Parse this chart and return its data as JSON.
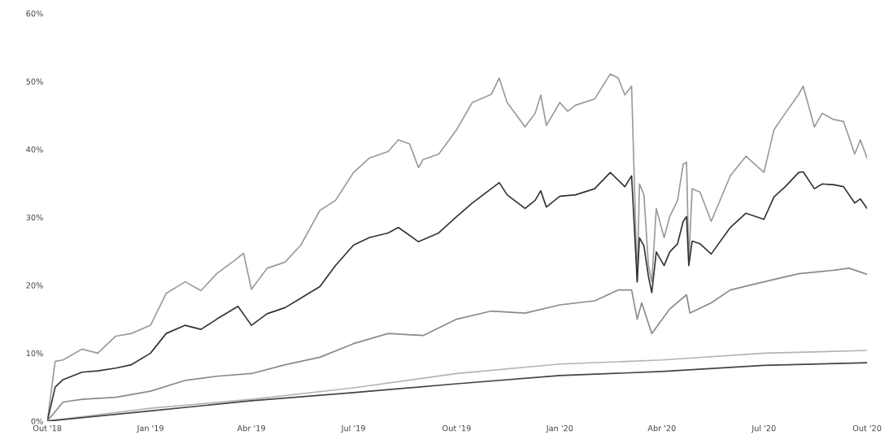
{
  "chart_data": {
    "type": "line",
    "xlim": [
      "2018-10-01",
      "2020-10-01"
    ],
    "xticks": [
      {
        "value": "2018-10-01",
        "label": "Out '18"
      },
      {
        "value": "2019-01-01",
        "label": "Jan '19"
      },
      {
        "value": "2019-04-01",
        "label": "Abr '19"
      },
      {
        "value": "2019-07-01",
        "label": "Jul '19"
      },
      {
        "value": "2019-10-01",
        "label": "Out '19"
      },
      {
        "value": "2020-01-01",
        "label": "Jan '20"
      },
      {
        "value": "2020-04-01",
        "label": "Abr '20"
      },
      {
        "value": "2020-07-01",
        "label": "Jul '20"
      },
      {
        "value": "2020-10-01",
        "label": "Out '20"
      }
    ],
    "ylim": [
      0,
      60
    ],
    "yticks": [
      {
        "value": 0,
        "label": "0%"
      },
      {
        "value": 10,
        "label": "10%"
      },
      {
        "value": 20,
        "label": "20%"
      },
      {
        "value": 30,
        "label": "30%"
      },
      {
        "value": 40,
        "label": "40%"
      },
      {
        "value": 50,
        "label": "50%"
      },
      {
        "value": 60,
        "label": "60%"
      }
    ],
    "grid": false,
    "legend": false,
    "series": [
      {
        "color": "#9a9a9a",
        "x": [
          "2018-10-01",
          "2018-10-08",
          "2018-10-15",
          "2018-11-01",
          "2018-11-15",
          "2018-12-01",
          "2018-12-15",
          "2019-01-01",
          "2019-01-15",
          "2019-02-01",
          "2019-02-15",
          "2019-03-01",
          "2019-03-15",
          "2019-03-25",
          "2019-04-01",
          "2019-04-15",
          "2019-05-01",
          "2019-05-15",
          "2019-06-01",
          "2019-06-15",
          "2019-07-01",
          "2019-07-15",
          "2019-08-01",
          "2019-08-10",
          "2019-08-20",
          "2019-08-28",
          "2019-09-01",
          "2019-09-15",
          "2019-10-01",
          "2019-10-15",
          "2019-11-01",
          "2019-11-08",
          "2019-11-15",
          "2019-12-01",
          "2019-12-10",
          "2019-12-15",
          "2019-12-20",
          "2020-01-01",
          "2020-01-08",
          "2020-01-15",
          "2020-02-01",
          "2020-02-15",
          "2020-02-22",
          "2020-02-28",
          "2020-03-05",
          "2020-03-10",
          "2020-03-12",
          "2020-03-16",
          "2020-03-20",
          "2020-03-23",
          "2020-03-27",
          "2020-04-03",
          "2020-04-08",
          "2020-04-15",
          "2020-04-20",
          "2020-04-23",
          "2020-04-25",
          "2020-04-28",
          "2020-05-05",
          "2020-05-15",
          "2020-06-01",
          "2020-06-15",
          "2020-07-01",
          "2020-07-10",
          "2020-07-20",
          "2020-08-01",
          "2020-08-05",
          "2020-08-15",
          "2020-08-22",
          "2020-09-01",
          "2020-09-10",
          "2020-09-20",
          "2020-09-25",
          "2020-10-01"
        ],
        "values": [
          0,
          8.8,
          9,
          10.6,
          10,
          12.5,
          12.9,
          14.1,
          18.8,
          20.5,
          19.2,
          21.7,
          23.4,
          24.7,
          19.4,
          22.5,
          23.4,
          25.9,
          31,
          32.5,
          36.6,
          38.7,
          39.7,
          41.4,
          40.8,
          37.3,
          38.5,
          39.3,
          42.9,
          46.9,
          48.1,
          50.5,
          46.9,
          43.3,
          45.3,
          48,
          43.5,
          46.9,
          45.6,
          46.5,
          47.4,
          51.1,
          50.5,
          48,
          49.3,
          20.5,
          34.9,
          33.3,
          22.9,
          20.5,
          31.3,
          27,
          30.1,
          32.5,
          37.8,
          38.1,
          23.4,
          34.2,
          33.7,
          29.4,
          36.1,
          39,
          36.6,
          42.9,
          45.3,
          48.1,
          49.3,
          43.3,
          45.3,
          44.4,
          44.1,
          39.3,
          41.4,
          38.7
        ]
      },
      {
        "color": "#333333",
        "x": [
          "2018-10-01",
          "2018-10-08",
          "2018-10-15",
          "2018-11-01",
          "2018-11-15",
          "2018-12-01",
          "2018-12-15",
          "2019-01-01",
          "2019-01-15",
          "2019-02-01",
          "2019-02-15",
          "2019-03-01",
          "2019-03-20",
          "2019-04-01",
          "2019-04-15",
          "2019-05-01",
          "2019-05-15",
          "2019-06-01",
          "2019-06-15",
          "2019-07-01",
          "2019-07-15",
          "2019-08-01",
          "2019-08-10",
          "2019-08-28",
          "2019-09-15",
          "2019-10-01",
          "2019-10-15",
          "2019-11-08",
          "2019-11-15",
          "2019-12-01",
          "2019-12-10",
          "2019-12-15",
          "2019-12-20",
          "2020-01-01",
          "2020-01-15",
          "2020-02-01",
          "2020-02-15",
          "2020-02-28",
          "2020-03-05",
          "2020-03-10",
          "2020-03-12",
          "2020-03-16",
          "2020-03-20",
          "2020-03-23",
          "2020-03-27",
          "2020-04-03",
          "2020-04-08",
          "2020-04-15",
          "2020-04-20",
          "2020-04-23",
          "2020-04-25",
          "2020-04-28",
          "2020-05-05",
          "2020-05-15",
          "2020-06-01",
          "2020-06-15",
          "2020-07-01",
          "2020-07-10",
          "2020-07-20",
          "2020-08-01",
          "2020-08-05",
          "2020-08-15",
          "2020-08-22",
          "2020-09-01",
          "2020-09-10",
          "2020-09-20",
          "2020-09-25",
          "2020-10-01"
        ],
        "values": [
          0,
          5,
          6.1,
          7.2,
          7.4,
          7.8,
          8.3,
          10,
          12.9,
          14.1,
          13.5,
          15,
          16.9,
          14.1,
          15.8,
          16.7,
          18.1,
          19.8,
          22.9,
          25.9,
          27,
          27.7,
          28.5,
          26.4,
          27.7,
          30.1,
          32.1,
          35.1,
          33.3,
          31.3,
          32.5,
          33.9,
          31.5,
          33.1,
          33.3,
          34.2,
          36.6,
          34.5,
          36.1,
          20.5,
          27,
          25.8,
          21.3,
          18.9,
          24.9,
          22.9,
          24.9,
          26.1,
          29.4,
          30.1,
          22.9,
          26.5,
          26.1,
          24.6,
          28.5,
          30.6,
          29.7,
          33,
          34.5,
          36.6,
          36.7,
          34.2,
          34.9,
          34.8,
          34.5,
          32.1,
          32.7,
          31.3
        ]
      },
      {
        "color": "#8a8a8a",
        "x": [
          "2018-10-01",
          "2018-10-15",
          "2018-11-01",
          "2018-12-01",
          "2019-01-01",
          "2019-02-01",
          "2019-03-01",
          "2019-04-01",
          "2019-05-01",
          "2019-06-01",
          "2019-07-01",
          "2019-08-01",
          "2019-09-01",
          "2019-10-01",
          "2019-11-01",
          "2019-12-01",
          "2020-01-01",
          "2020-02-01",
          "2020-02-22",
          "2020-03-05",
          "2020-03-10",
          "2020-03-14",
          "2020-03-23",
          "2020-04-08",
          "2020-04-23",
          "2020-04-26",
          "2020-05-15",
          "2020-06-01",
          "2020-07-01",
          "2020-08-01",
          "2020-09-01",
          "2020-09-15",
          "2020-10-01"
        ],
        "values": [
          0,
          2.8,
          3.2,
          3.5,
          4.4,
          6,
          6.6,
          7,
          8.3,
          9.4,
          11.4,
          12.9,
          12.6,
          15,
          16.2,
          15.9,
          17.1,
          17.7,
          19.3,
          19.3,
          15,
          17.4,
          12.9,
          16.5,
          18.6,
          15.9,
          17.4,
          19.3,
          20.5,
          21.7,
          22.2,
          22.5,
          21.6
        ]
      },
      {
        "color": "#b4b4b4",
        "x": [
          "2018-10-01",
          "2019-01-01",
          "2019-04-01",
          "2019-07-01",
          "2019-10-01",
          "2020-01-01",
          "2020-04-01",
          "2020-07-01",
          "2020-10-01"
        ],
        "values": [
          0,
          1.9,
          3.2,
          4.9,
          7,
          8.4,
          9,
          10,
          10.4
        ]
      },
      {
        "color": "#444444",
        "x": [
          "2018-10-01",
          "2019-01-01",
          "2019-04-01",
          "2019-07-01",
          "2019-10-01",
          "2020-01-01",
          "2020-04-01",
          "2020-07-01",
          "2020-10-01"
        ],
        "values": [
          0,
          1.5,
          3,
          4.2,
          5.5,
          6.7,
          7.3,
          8.2,
          8.6
        ]
      }
    ]
  }
}
